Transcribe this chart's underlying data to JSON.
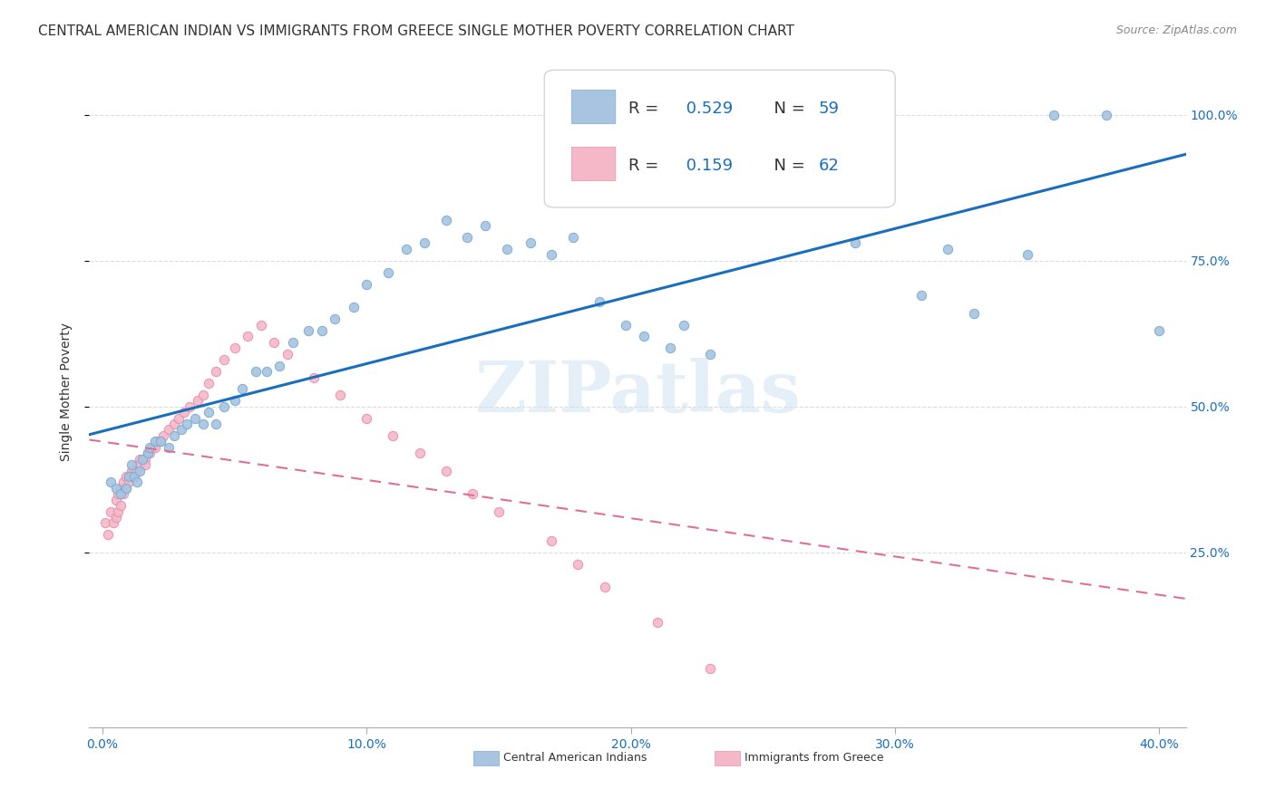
{
  "title": "CENTRAL AMERICAN INDIAN VS IMMIGRANTS FROM GREECE SINGLE MOTHER POVERTY CORRELATION CHART",
  "source": "Source: ZipAtlas.com",
  "xlabel_ticks": [
    "0.0%",
    "10.0%",
    "20.0%",
    "30.0%",
    "40.0%"
  ],
  "xlabel_tick_vals": [
    0.0,
    0.1,
    0.2,
    0.3,
    0.4
  ],
  "ylabel_ticks": [
    "100.0%",
    "75.0%",
    "50.0%",
    "25.0%"
  ],
  "ylabel_tick_vals": [
    1.0,
    0.75,
    0.5,
    0.25
  ],
  "ylabel_label": "Single Mother Poverty",
  "xlim": [
    -0.005,
    0.41
  ],
  "ylim": [
    -0.05,
    1.1
  ],
  "R_blue": 0.529,
  "N_blue": 59,
  "R_pink": 0.159,
  "N_pink": 62,
  "legend_label_blue": "Central American Indians",
  "legend_label_pink": "Immigrants from Greece",
  "watermark": "ZIPatlas",
  "blue_color": "#a8c4e0",
  "blue_edge_color": "#7aadd4",
  "blue_line_color": "#1a6fbd",
  "pink_color": "#f4b8c8",
  "pink_edge_color": "#e890ac",
  "pink_line_color": "#e07090",
  "grid_color": "#dddddd",
  "title_fontsize": 11,
  "source_fontsize": 9,
  "axis_label_fontsize": 10,
  "tick_fontsize": 10,
  "legend_fontsize": 13,
  "blue_scatter_x": [
    0.003,
    0.005,
    0.007,
    0.009,
    0.01,
    0.011,
    0.012,
    0.013,
    0.014,
    0.015,
    0.017,
    0.018,
    0.02,
    0.022,
    0.025,
    0.027,
    0.03,
    0.032,
    0.035,
    0.038,
    0.04,
    0.043,
    0.046,
    0.05,
    0.053,
    0.058,
    0.062,
    0.067,
    0.072,
    0.078,
    0.083,
    0.088,
    0.095,
    0.1,
    0.108,
    0.115,
    0.122,
    0.13,
    0.138,
    0.145,
    0.153,
    0.162,
    0.17,
    0.178,
    0.188,
    0.198,
    0.205,
    0.215,
    0.22,
    0.23,
    0.27,
    0.285,
    0.31,
    0.32,
    0.33,
    0.35,
    0.36,
    0.38,
    0.4
  ],
  "blue_scatter_y": [
    0.37,
    0.36,
    0.35,
    0.36,
    0.38,
    0.4,
    0.38,
    0.37,
    0.39,
    0.41,
    0.42,
    0.43,
    0.44,
    0.44,
    0.43,
    0.45,
    0.46,
    0.47,
    0.48,
    0.47,
    0.49,
    0.47,
    0.5,
    0.51,
    0.53,
    0.56,
    0.56,
    0.57,
    0.61,
    0.63,
    0.63,
    0.65,
    0.67,
    0.71,
    0.73,
    0.77,
    0.78,
    0.82,
    0.79,
    0.81,
    0.77,
    0.78,
    0.76,
    0.79,
    0.68,
    0.64,
    0.62,
    0.6,
    0.64,
    0.59,
    0.87,
    0.78,
    0.69,
    0.77,
    0.66,
    0.76,
    1.0,
    1.0,
    0.63
  ],
  "pink_scatter_x": [
    0.001,
    0.002,
    0.003,
    0.004,
    0.005,
    0.005,
    0.006,
    0.006,
    0.007,
    0.007,
    0.008,
    0.008,
    0.009,
    0.009,
    0.01,
    0.01,
    0.011,
    0.011,
    0.012,
    0.012,
    0.013,
    0.013,
    0.014,
    0.014,
    0.015,
    0.016,
    0.016,
    0.017,
    0.018,
    0.019,
    0.02,
    0.021,
    0.022,
    0.023,
    0.025,
    0.027,
    0.029,
    0.031,
    0.033,
    0.036,
    0.038,
    0.04,
    0.043,
    0.046,
    0.05,
    0.055,
    0.06,
    0.065,
    0.07,
    0.08,
    0.09,
    0.1,
    0.11,
    0.12,
    0.13,
    0.14,
    0.15,
    0.17,
    0.18,
    0.19,
    0.21,
    0.23
  ],
  "pink_scatter_y": [
    0.3,
    0.28,
    0.32,
    0.3,
    0.34,
    0.31,
    0.35,
    0.32,
    0.36,
    0.33,
    0.37,
    0.35,
    0.38,
    0.36,
    0.38,
    0.37,
    0.39,
    0.38,
    0.39,
    0.38,
    0.4,
    0.39,
    0.41,
    0.4,
    0.41,
    0.41,
    0.4,
    0.42,
    0.42,
    0.43,
    0.43,
    0.44,
    0.44,
    0.45,
    0.46,
    0.47,
    0.48,
    0.49,
    0.5,
    0.51,
    0.52,
    0.54,
    0.56,
    0.58,
    0.6,
    0.62,
    0.64,
    0.61,
    0.59,
    0.55,
    0.52,
    0.48,
    0.45,
    0.42,
    0.39,
    0.35,
    0.32,
    0.27,
    0.23,
    0.19,
    0.13,
    0.05
  ]
}
